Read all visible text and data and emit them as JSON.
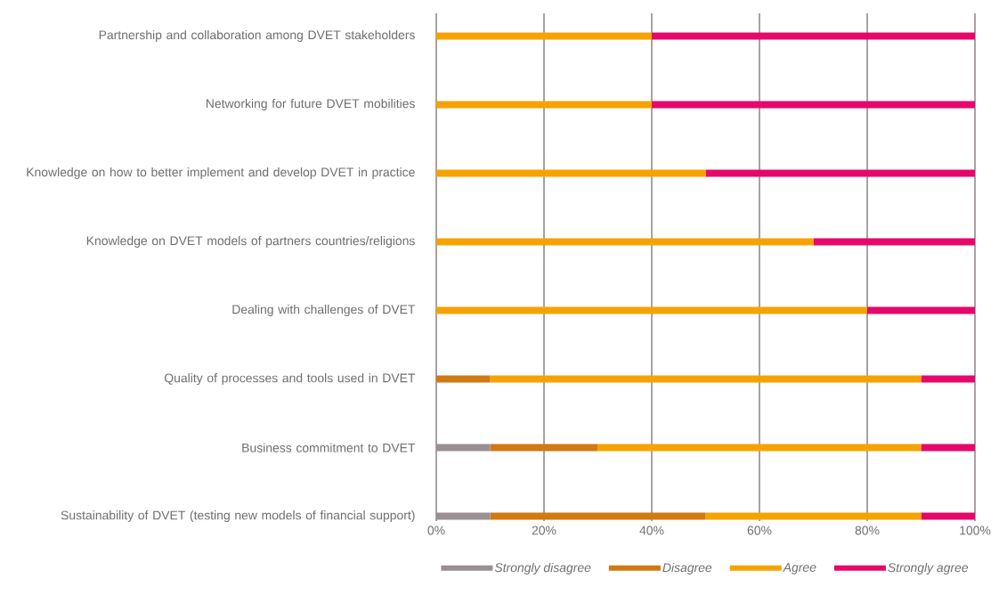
{
  "chart_data": {
    "type": "bar",
    "orientation": "horizontal",
    "stacked": true,
    "categories": [
      "Partnership and collaboration among DVET stakeholders",
      "Networking for future DVET mobilities",
      "Knowledge on  how to better implement and develop DVET in practice",
      "Knowledge on  DVET models of partners countries/religions",
      "Dealing with challenges of DVET",
      "Quality of processes and tools used in DVET",
      "Business commitment to DVET",
      "Sustainability of DVET (testing new models of financial support)"
    ],
    "series": [
      {
        "name": "Strongly disagree",
        "color": "#9a8f93",
        "values": [
          0,
          0,
          0,
          0,
          0,
          0,
          10,
          10
        ]
      },
      {
        "name": "Disagree",
        "color": "#d07a14",
        "values": [
          0,
          0,
          0,
          0,
          0,
          10,
          20,
          40
        ]
      },
      {
        "name": "Agree",
        "color": "#f5a300",
        "values": [
          40,
          40,
          50,
          70,
          80,
          80,
          60,
          40
        ]
      },
      {
        "name": "Strongly agree",
        "color": "#e5086a",
        "values": [
          60,
          60,
          50,
          30,
          20,
          10,
          10,
          10
        ]
      }
    ],
    "xlim": [
      0,
      100
    ],
    "xticks": [
      {
        "value": 0,
        "label": "0%"
      },
      {
        "value": 20,
        "label": "20%"
      },
      {
        "value": 40,
        "label": "40%"
      },
      {
        "value": 60,
        "label": "60%"
      },
      {
        "value": 80,
        "label": "80%"
      },
      {
        "value": 100,
        "label": "100%"
      }
    ],
    "grid": "x",
    "legend": "bottom"
  }
}
